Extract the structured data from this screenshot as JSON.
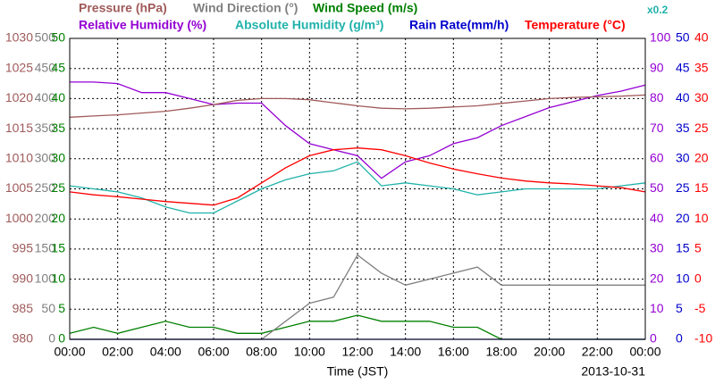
{
  "chart_data": {
    "type": "line",
    "x_label": "Time (JST)",
    "date": "2013-10-31",
    "annotation": "x0.2",
    "x": [
      0,
      1,
      2,
      3,
      4,
      5,
      6,
      7,
      8,
      9,
      10,
      11,
      12,
      13,
      14,
      15,
      16,
      17,
      18,
      19,
      20,
      21,
      22,
      23,
      24
    ],
    "xlim": [
      0,
      24
    ],
    "xticks": [
      {
        "value": 0,
        "label": "00:00"
      },
      {
        "value": 2,
        "label": "02:00"
      },
      {
        "value": 4,
        "label": "04:00"
      },
      {
        "value": 6,
        "label": "06:00"
      },
      {
        "value": 8,
        "label": "08:00"
      },
      {
        "value": 10,
        "label": "10:00"
      },
      {
        "value": 12,
        "label": "12:00"
      },
      {
        "value": 14,
        "label": "14:00"
      },
      {
        "value": 16,
        "label": "16:00"
      },
      {
        "value": 18,
        "label": "18:00"
      },
      {
        "value": 20,
        "label": "20:00"
      },
      {
        "value": 22,
        "label": "22:00"
      },
      {
        "value": 24,
        "label": "00:00"
      }
    ],
    "grid": true,
    "y_axes": [
      {
        "side": "left",
        "color": "#a05a5a",
        "lim": [
          980,
          1030
        ],
        "ticks": [
          980,
          985,
          990,
          995,
          1000,
          1005,
          1010,
          1015,
          1020,
          1025,
          1030
        ]
      },
      {
        "side": "left",
        "color": "#808080",
        "lim": [
          0,
          500
        ],
        "ticks": [
          0,
          50,
          100,
          150,
          200,
          250,
          300,
          350,
          400,
          450,
          500
        ]
      },
      {
        "side": "left",
        "color": "#008000",
        "lim": [
          0,
          50
        ],
        "ticks": [
          0,
          5,
          10,
          15,
          20,
          25,
          30,
          35,
          40,
          45,
          50
        ]
      },
      {
        "side": "right",
        "color": "#9400d3",
        "lim": [
          0,
          100
        ],
        "ticks": [
          0,
          10,
          20,
          30,
          40,
          50,
          60,
          70,
          80,
          90,
          100
        ]
      },
      {
        "side": "right",
        "color": "#0000cd",
        "lim": [
          0,
          50
        ],
        "ticks": [
          0,
          5,
          10,
          15,
          20,
          25,
          30,
          35,
          40,
          45,
          50
        ]
      },
      {
        "side": "right",
        "color": "#ff0000",
        "lim": [
          -10,
          40
        ],
        "ticks": [
          -10,
          -5,
          0,
          5,
          10,
          15,
          20,
          25,
          30,
          35,
          40
        ]
      }
    ],
    "series": [
      {
        "name": "Pressure (hPa)",
        "color": "#a05a5a",
        "axis": 0,
        "values": [
          1016.9,
          1017.1,
          1017.3,
          1017.6,
          1017.9,
          1018.4,
          1019.0,
          1019.7,
          1020.0,
          1020.0,
          1019.8,
          1019.3,
          1018.8,
          1018.4,
          1018.3,
          1018.4,
          1018.6,
          1018.8,
          1019.2,
          1019.6,
          1020.0,
          1020.2,
          1020.3,
          1020.4,
          1020.6
        ]
      },
      {
        "name": "Wind Direction (°)",
        "color": "#808080",
        "axis": 1,
        "values": [
          0,
          0,
          0,
          0,
          0,
          0,
          0,
          0,
          0,
          30,
          60,
          70,
          140,
          110,
          90,
          100,
          110,
          120,
          90,
          90,
          90,
          90,
          90,
          90,
          90
        ]
      },
      {
        "name": "Wind Speed (m/s)",
        "color": "#008000",
        "axis": 2,
        "values": [
          1,
          2,
          1,
          2,
          3,
          2,
          2,
          1,
          1,
          2,
          3,
          3,
          4,
          3,
          3,
          3,
          2,
          2,
          0,
          0,
          0,
          0,
          0,
          0,
          0
        ]
      },
      {
        "name": "Relative Humidity (%)",
        "color": "#9400d3",
        "axis": 3,
        "values": [
          85.5,
          85.5,
          85,
          82,
          82,
          80,
          78,
          78.5,
          78.5,
          71,
          65,
          63,
          61,
          53.5,
          59,
          61,
          65,
          67,
          71,
          74,
          77,
          79,
          81,
          82.5,
          84.5
        ]
      },
      {
        "name": "Absolute Humidity (g/m³)",
        "color": "#20b2aa",
        "axis": 4,
        "values": [
          25.5,
          25,
          24.5,
          23.5,
          22,
          21,
          21,
          23,
          25,
          26.5,
          27.5,
          28,
          29.5,
          25.5,
          26,
          25.5,
          25,
          24,
          24.5,
          25,
          25,
          25,
          25,
          25.5,
          26
        ]
      },
      {
        "name": "Rain Rate(mm/h)",
        "color": "#0000cd",
        "axis": 4,
        "values": [
          0,
          0,
          0,
          0,
          0,
          0,
          0,
          0,
          0,
          0,
          0,
          0,
          0,
          0,
          0,
          0,
          0,
          0,
          0,
          0,
          0,
          0,
          0,
          0,
          0
        ]
      },
      {
        "name": "Temperature (°C)",
        "color": "#ff0000",
        "axis": 5,
        "values": [
          14.5,
          14,
          13.7,
          13.3,
          12.9,
          12.6,
          12.3,
          13.5,
          16,
          18.5,
          20.5,
          21.5,
          21.8,
          21.5,
          20.5,
          19.3,
          18.3,
          17.5,
          16.8,
          16.3,
          16,
          15.8,
          15.5,
          15.2,
          14.5
        ]
      }
    ]
  }
}
